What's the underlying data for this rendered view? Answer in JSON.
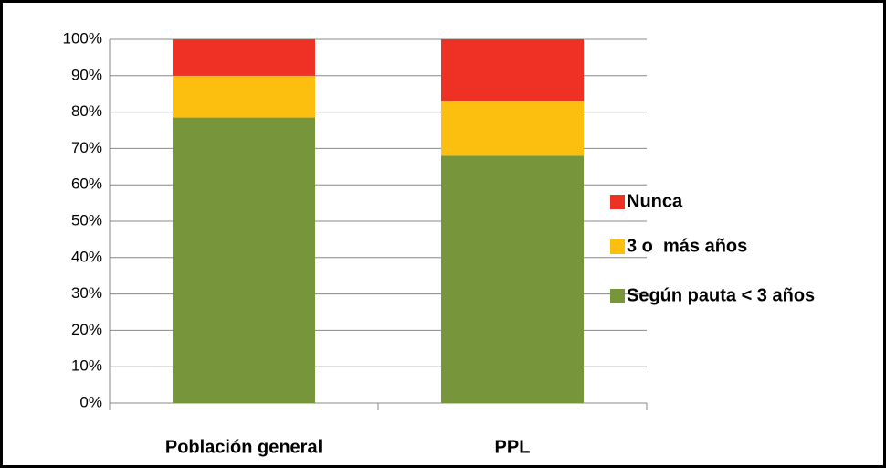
{
  "chart_data": {
    "type": "stacked_bar",
    "categories": [
      "Población general",
      "PPL"
    ],
    "series": [
      {
        "name": "Según pauta < 3 años",
        "color": "#77963b",
        "values": [
          78.5,
          68
        ]
      },
      {
        "name": "3 o  más años",
        "color": "#fcbf10",
        "values": [
          11.5,
          15
        ]
      },
      {
        "name": "Nunca",
        "color": "#ee3124",
        "values": [
          10,
          17
        ]
      }
    ],
    "ylim": [
      0,
      100
    ],
    "yticks": [
      {
        "value": 0,
        "label": "0%"
      },
      {
        "value": 10,
        "label": "10%"
      },
      {
        "value": 20,
        "label": "20%"
      },
      {
        "value": 30,
        "label": "30%"
      },
      {
        "value": 40,
        "label": "40%"
      },
      {
        "value": 50,
        "label": "50%"
      },
      {
        "value": 60,
        "label": "60%"
      },
      {
        "value": 70,
        "label": "70%"
      },
      {
        "value": 80,
        "label": "80%"
      },
      {
        "value": 90,
        "label": "90%"
      },
      {
        "value": 100,
        "label": "100%"
      }
    ],
    "grid": true,
    "legend": "right"
  }
}
